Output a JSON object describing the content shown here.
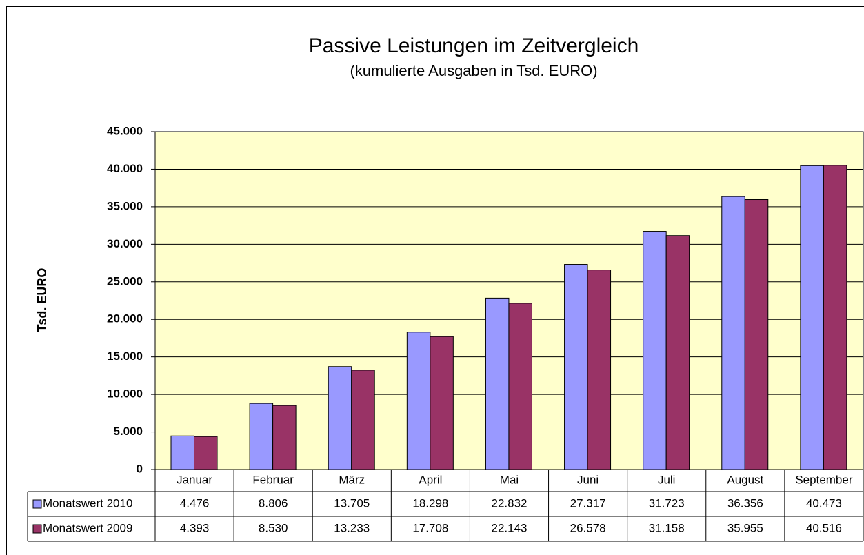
{
  "chart_data": {
    "type": "bar",
    "title": "Passive Leistungen im Zeitvergleich",
    "subtitle": "(kumulierte Ausgaben in Tsd. EURO)",
    "ylabel": "Tsd. EURO",
    "categories": [
      "Januar",
      "Februar",
      "März",
      "April",
      "Mai",
      "Juni",
      "Juli",
      "August",
      "September"
    ],
    "series": [
      {
        "name": "Monatswert 2010",
        "color": "#9999ff",
        "values": [
          4476,
          8806,
          13705,
          18298,
          22832,
          27317,
          31723,
          36356,
          40473
        ],
        "value_labels": [
          "4.476",
          "8.806",
          "13.705",
          "18.298",
          "22.832",
          "27.317",
          "31.723",
          "36.356",
          "40.473"
        ]
      },
      {
        "name": "Monatswert 2009",
        "color": "#993366",
        "values": [
          4393,
          8530,
          13233,
          17708,
          22143,
          26578,
          31158,
          35955,
          40516
        ],
        "value_labels": [
          "4.393",
          "8.530",
          "13.233",
          "17.708",
          "22.143",
          "26.578",
          "31.158",
          "35.955",
          "40.516"
        ]
      }
    ],
    "ylim": [
      0,
      45000
    ],
    "yticks": [
      0,
      {
        "value": 5000,
        "label": "5.000"
      },
      {
        "value": 10000,
        "label": "10.000"
      },
      {
        "value": 15000,
        "label": "15.000"
      },
      {
        "value": 20000,
        "label": "20.000"
      },
      {
        "value": 25000,
        "label": "25.000"
      },
      {
        "value": 30000,
        "label": "30.000"
      },
      {
        "value": 35000,
        "label": "35.000"
      },
      {
        "value": 40000,
        "label": "40.000"
      },
      {
        "value": 45000,
        "label": "45.000"
      }
    ],
    "grid": true,
    "plot_color": "#ffffcc"
  }
}
